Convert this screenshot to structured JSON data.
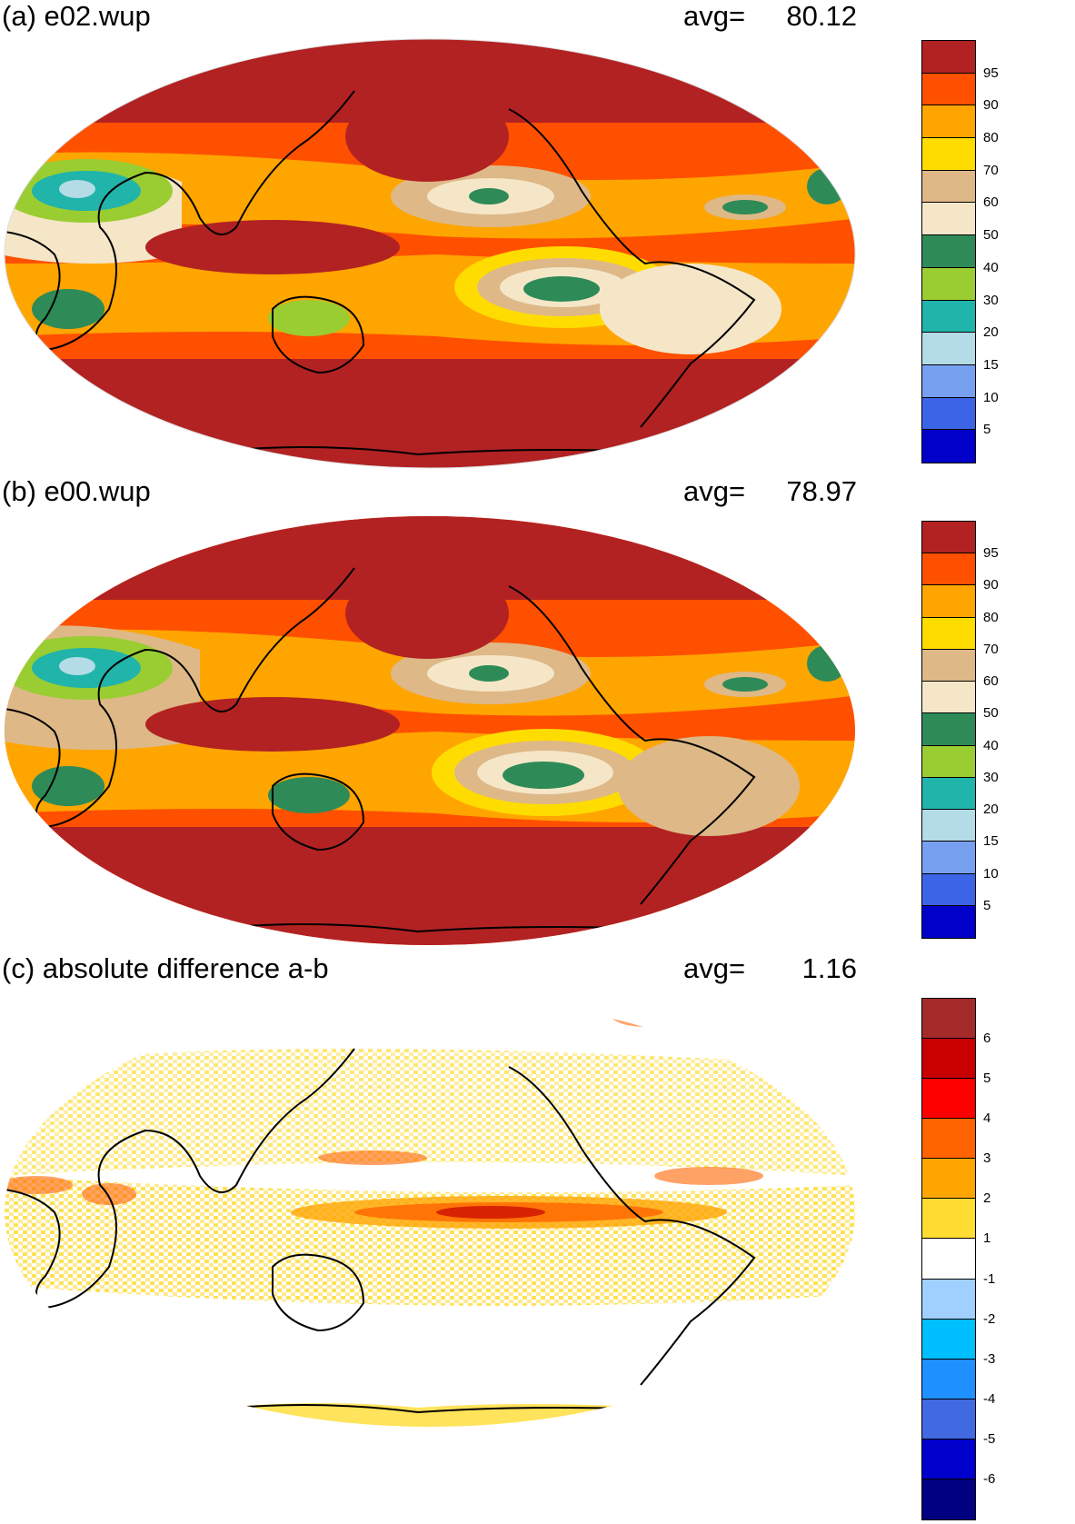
{
  "panels": [
    {
      "id": "a",
      "title": "(a) e02.wup",
      "avg_label": "avg=",
      "avg_value": "80.12",
      "colorbar": {
        "colors": [
          "#0000c8",
          "#3c64e6",
          "#78a0f0",
          "#b4dce6",
          "#20b4aa",
          "#9acd32",
          "#2e8b57",
          "#f5e6c8",
          "#deb887",
          "#ffdc00",
          "#ffa500",
          "#ff5000",
          "#b22222"
        ],
        "labels": [
          "5",
          "10",
          "15",
          "20",
          "30",
          "40",
          "50",
          "60",
          "70",
          "80",
          "90",
          "95"
        ]
      }
    },
    {
      "id": "b",
      "title": "(b) e00.wup",
      "avg_label": "avg=",
      "avg_value": "78.97",
      "colorbar": {
        "colors": [
          "#0000c8",
          "#3c64e6",
          "#78a0f0",
          "#b4dce6",
          "#20b4aa",
          "#9acd32",
          "#2e8b57",
          "#f5e6c8",
          "#deb887",
          "#ffdc00",
          "#ffa500",
          "#ff5000",
          "#b22222"
        ],
        "labels": [
          "5",
          "10",
          "15",
          "20",
          "30",
          "40",
          "50",
          "60",
          "70",
          "80",
          "90",
          "95"
        ]
      }
    },
    {
      "id": "c",
      "title": "(c) absolute difference a-b",
      "avg_label": "avg=",
      "avg_value": "1.16",
      "colorbar": {
        "colors": [
          "#000080",
          "#0000cd",
          "#4169e1",
          "#1e90ff",
          "#00bfff",
          "#a0d0ff",
          "#ffffff",
          "#ffdc32",
          "#ffa500",
          "#ff6400",
          "#ff0000",
          "#c80000",
          "#a52a2a"
        ],
        "labels": [
          "-6",
          "-5",
          "-4",
          "-3",
          "-2",
          "-1",
          "1",
          "2",
          "3",
          "4",
          "5",
          "6"
        ]
      }
    }
  ]
}
